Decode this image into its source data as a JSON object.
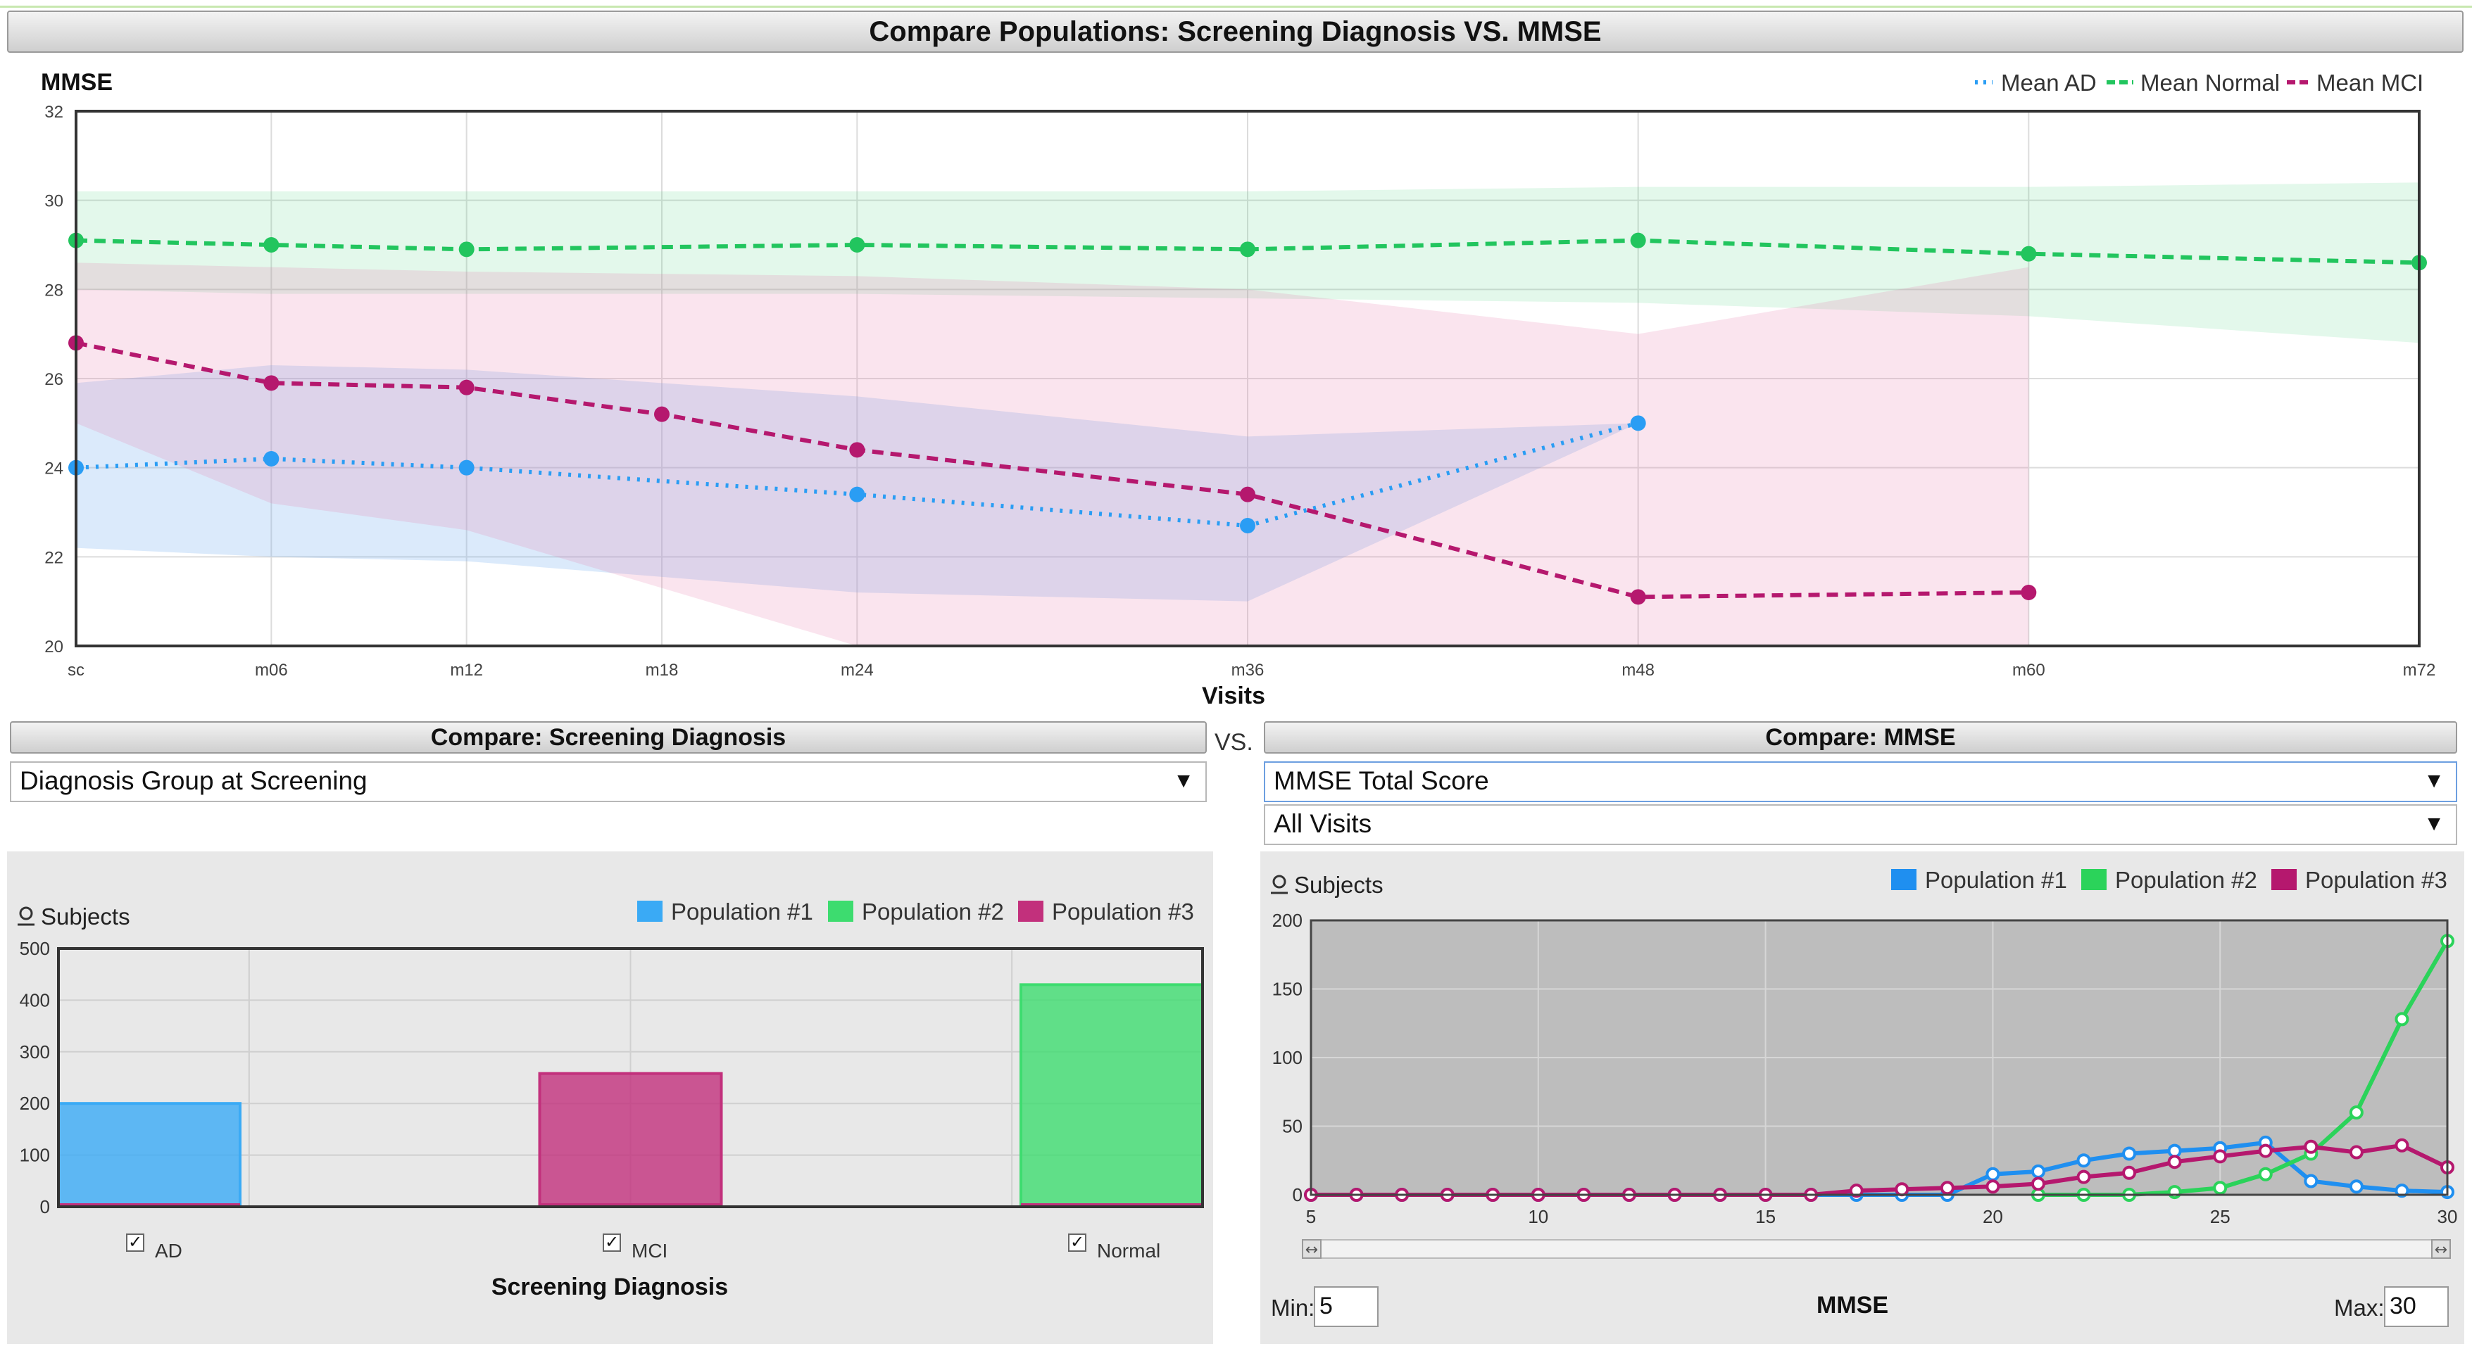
{
  "header": {
    "title": "Compare Populations: Screening Diagnosis VS. MMSE"
  },
  "top_chart_ui": {
    "legend": [
      {
        "label": "Mean AD",
        "color": "#2a9df4",
        "style": "dotted"
      },
      {
        "label": "Mean Normal",
        "color": "#22c55e",
        "style": "dashed"
      },
      {
        "label": "Mean MCI",
        "color": "#b5186e",
        "style": "dashed"
      }
    ]
  },
  "left_panel": {
    "header": "Compare: Screening Diagnosis",
    "select_value": "Diagnosis Group at Screening",
    "subjects_label": "Subjects",
    "checkbox_labels": [
      "AD",
      "MCI",
      "Normal"
    ]
  },
  "vs_label": "VS.",
  "right_panel": {
    "header": "Compare: MMSE",
    "select_value": "MMSE Total Score",
    "visit_select_value": "All Visits",
    "subjects_label": "Subjects",
    "min_label": "Min:",
    "min_value": "5",
    "max_label": "Max:",
    "max_value": "30",
    "xlabel_under": "MMSE"
  },
  "chart_data": [
    {
      "type": "line",
      "title": "",
      "ylabel": "MMSE",
      "xlabel": "Visits",
      "ylim": [
        20,
        32
      ],
      "yticks": [
        20,
        22,
        24,
        26,
        28,
        30,
        32
      ],
      "x": [
        "sc",
        "m06",
        "m12",
        "m18",
        "m24",
        "m36",
        "m48",
        "m60",
        "m72"
      ],
      "x_pos_months": [
        0,
        6,
        12,
        18,
        24,
        36,
        48,
        60,
        72
      ],
      "grid": true,
      "legend": "top-right",
      "series": [
        {
          "name": "Mean AD",
          "color": "#2a9df4",
          "dash": "4,10",
          "points": [
            [
              0,
              24.0
            ],
            [
              6,
              24.2
            ],
            [
              12,
              24.0
            ],
            [
              24,
              23.4
            ],
            [
              36,
              22.7
            ],
            [
              48,
              25.0
            ]
          ],
          "band_upper": [
            [
              0,
              25.9
            ],
            [
              6,
              26.3
            ],
            [
              12,
              26.2
            ],
            [
              24,
              25.6
            ],
            [
              36,
              24.7
            ],
            [
              48,
              25.0
            ]
          ],
          "band_lower": [
            [
              0,
              22.2
            ],
            [
              6,
              22.0
            ],
            [
              12,
              21.9
            ],
            [
              24,
              21.2
            ],
            [
              36,
              21.0
            ],
            [
              48,
              25.0
            ]
          ]
        },
        {
          "name": "Mean Normal",
          "color": "#22c55e",
          "dash": "16,10",
          "points": [
            [
              0,
              29.1
            ],
            [
              6,
              29.0
            ],
            [
              12,
              28.9
            ],
            [
              24,
              29.0
            ],
            [
              36,
              28.9
            ],
            [
              48,
              29.1
            ],
            [
              60,
              28.8
            ],
            [
              72,
              28.6
            ]
          ],
          "band_upper": [
            [
              0,
              30.2
            ],
            [
              6,
              30.2
            ],
            [
              12,
              30.2
            ],
            [
              24,
              30.2
            ],
            [
              36,
              30.2
            ],
            [
              48,
              30.3
            ],
            [
              60,
              30.3
            ],
            [
              72,
              30.4
            ]
          ],
          "band_lower": [
            [
              0,
              28.0
            ],
            [
              6,
              27.9
            ],
            [
              12,
              27.9
            ],
            [
              24,
              27.9
            ],
            [
              36,
              27.8
            ],
            [
              48,
              27.7
            ],
            [
              60,
              27.4
            ],
            [
              72,
              26.8
            ]
          ]
        },
        {
          "name": "Mean MCI",
          "color": "#b5186e",
          "dash": "16,10",
          "points": [
            [
              0,
              26.8
            ],
            [
              6,
              25.9
            ],
            [
              12,
              25.8
            ],
            [
              18,
              25.2
            ],
            [
              24,
              24.4
            ],
            [
              36,
              23.4
            ],
            [
              48,
              21.1
            ],
            [
              60,
              21.2
            ]
          ],
          "band_upper": [
            [
              0,
              28.6
            ],
            [
              6,
              28.5
            ],
            [
              12,
              28.4
            ],
            [
              24,
              28.3
            ],
            [
              36,
              28.0
            ],
            [
              48,
              27.0
            ],
            [
              60,
              28.5
            ]
          ],
          "band_lower": [
            [
              0,
              25.0
            ],
            [
              6,
              23.2
            ],
            [
              12,
              22.6
            ],
            [
              24,
              20.0
            ],
            [
              36,
              20.0
            ],
            [
              48,
              20.0
            ],
            [
              60,
              20.0
            ]
          ]
        }
      ]
    },
    {
      "type": "bar",
      "title": "",
      "xlabel": "Screening Diagnosis",
      "ylabel": "Subjects",
      "ylim": [
        0,
        500
      ],
      "yticks": [
        0,
        100,
        200,
        300,
        400,
        500
      ],
      "categories": [
        "AD",
        "MCI",
        "Normal"
      ],
      "legend": "top-right",
      "series": [
        {
          "name": "Population #1",
          "color": "#3aaaf5",
          "values": [
            200,
            0,
            0
          ]
        },
        {
          "name": "Population #2",
          "color": "#3ddc6f",
          "values": [
            0,
            0,
            430
          ]
        },
        {
          "name": "Population #3",
          "color": "#c2307c",
          "values": [
            0,
            258,
            0
          ]
        }
      ]
    },
    {
      "type": "line",
      "title": "",
      "xlabel": "MMSE",
      "ylabel": "Subjects",
      "xlim": [
        5,
        30
      ],
      "ylim": [
        0,
        200
      ],
      "xticks": [
        5,
        10,
        15,
        20,
        25,
        30
      ],
      "yticks": [
        0,
        50,
        100,
        150,
        200
      ],
      "legend": "top-right",
      "series": [
        {
          "name": "Population #1",
          "color": "#1f8ff0",
          "points": [
            [
              5,
              0
            ],
            [
              6,
              0
            ],
            [
              7,
              0
            ],
            [
              8,
              0
            ],
            [
              9,
              0
            ],
            [
              10,
              0
            ],
            [
              11,
              0
            ],
            [
              12,
              0
            ],
            [
              13,
              0
            ],
            [
              14,
              0
            ],
            [
              15,
              0
            ],
            [
              16,
              0
            ],
            [
              17,
              0
            ],
            [
              18,
              0
            ],
            [
              19,
              0
            ],
            [
              20,
              15
            ],
            [
              21,
              17
            ],
            [
              22,
              25
            ],
            [
              23,
              30
            ],
            [
              24,
              32
            ],
            [
              25,
              34
            ],
            [
              26,
              38
            ],
            [
              27,
              10
            ],
            [
              28,
              6
            ],
            [
              29,
              3
            ],
            [
              30,
              2
            ]
          ]
        },
        {
          "name": "Population #2",
          "color": "#2bd35a",
          "points": [
            [
              21,
              0
            ],
            [
              22,
              0
            ],
            [
              23,
              0
            ],
            [
              24,
              2
            ],
            [
              25,
              5
            ],
            [
              26,
              15
            ],
            [
              27,
              30
            ],
            [
              28,
              60
            ],
            [
              29,
              128
            ],
            [
              30,
              185
            ]
          ]
        },
        {
          "name": "Population #3",
          "color": "#b5186e",
          "points": [
            [
              5,
              0
            ],
            [
              6,
              0
            ],
            [
              7,
              0
            ],
            [
              8,
              0
            ],
            [
              9,
              0
            ],
            [
              10,
              0
            ],
            [
              11,
              0
            ],
            [
              12,
              0
            ],
            [
              13,
              0
            ],
            [
              14,
              0
            ],
            [
              15,
              0
            ],
            [
              16,
              0
            ],
            [
              17,
              3
            ],
            [
              18,
              4
            ],
            [
              19,
              5
            ],
            [
              20,
              6
            ],
            [
              21,
              8
            ],
            [
              22,
              13
            ],
            [
              23,
              16
            ],
            [
              24,
              24
            ],
            [
              25,
              28
            ],
            [
              26,
              32
            ],
            [
              27,
              35
            ],
            [
              28,
              31
            ],
            [
              29,
              36
            ],
            [
              30,
              20
            ]
          ]
        }
      ]
    }
  ]
}
